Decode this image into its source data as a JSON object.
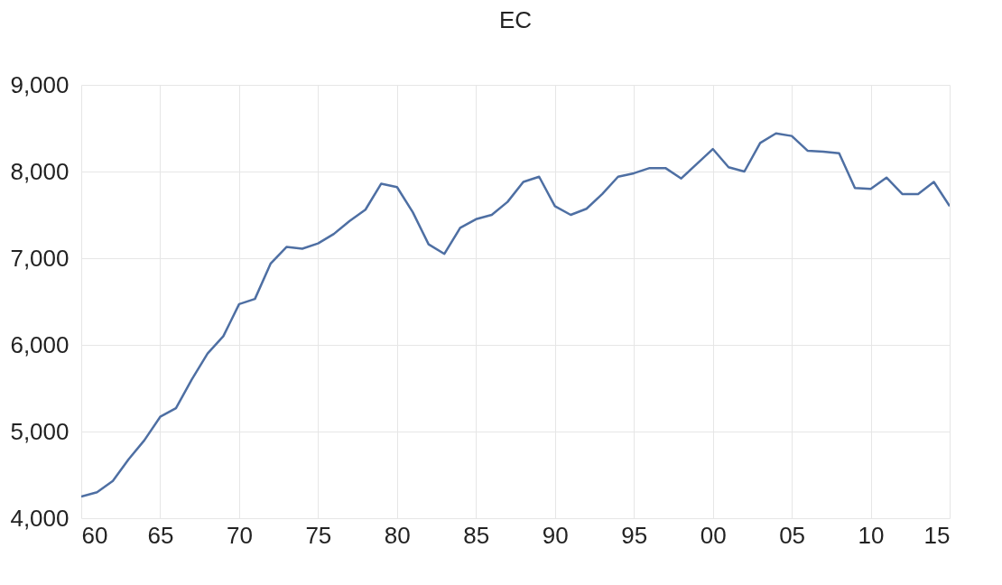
{
  "chart_data": {
    "type": "line",
    "title": "EC",
    "x": [
      1960,
      1961,
      1962,
      1963,
      1964,
      1965,
      1966,
      1967,
      1968,
      1969,
      1970,
      1971,
      1972,
      1973,
      1974,
      1975,
      1976,
      1977,
      1978,
      1979,
      1980,
      1981,
      1982,
      1983,
      1984,
      1985,
      1986,
      1987,
      1988,
      1989,
      1990,
      1991,
      1992,
      1993,
      1994,
      1995,
      1996,
      1997,
      1998,
      1999,
      2000,
      2001,
      2002,
      2003,
      2004,
      2005,
      2006,
      2007,
      2008,
      2009,
      2010,
      2011,
      2012,
      2013,
      2014,
      2015
    ],
    "series": [
      {
        "color": "#4e6fa3",
        "values": [
          4250,
          4300,
          4430,
          4680,
          4900,
          5170,
          5270,
          5600,
          5900,
          6100,
          6470,
          6530,
          6940,
          7130,
          7110,
          7170,
          7280,
          7430,
          7560,
          7860,
          7820,
          7530,
          7160,
          7050,
          7350,
          7450,
          7500,
          7650,
          7880,
          7940,
          7600,
          7500,
          7570,
          7740,
          7940,
          7980,
          8040,
          8040,
          7920,
          8090,
          8260,
          8050,
          8000,
          8330,
          8440,
          8410,
          8240,
          8230,
          8210,
          7810,
          7800,
          7930,
          7740,
          7740,
          7880,
          7600
        ]
      }
    ],
    "xlim": [
      1960,
      2015
    ],
    "xticks": [
      {
        "value": 1960,
        "label": "60"
      },
      {
        "value": 1965,
        "label": "65"
      },
      {
        "value": 1970,
        "label": "70"
      },
      {
        "value": 1975,
        "label": "75"
      },
      {
        "value": 1980,
        "label": "80"
      },
      {
        "value": 1985,
        "label": "85"
      },
      {
        "value": 1990,
        "label": "90"
      },
      {
        "value": 1995,
        "label": "95"
      },
      {
        "value": 2000,
        "label": "00"
      },
      {
        "value": 2005,
        "label": "05"
      },
      {
        "value": 2010,
        "label": "10"
      },
      {
        "value": 2015,
        "label": "15"
      }
    ],
    "ylim": [
      4000,
      9000
    ],
    "yticks": [
      {
        "value": 4000,
        "label": "4,000"
      },
      {
        "value": 5000,
        "label": "5,000"
      },
      {
        "value": 6000,
        "label": "6,000"
      },
      {
        "value": 7000,
        "label": "7,000"
      },
      {
        "value": 8000,
        "label": "8,000"
      },
      {
        "value": 9000,
        "label": "9,000"
      }
    ],
    "grid": true
  }
}
